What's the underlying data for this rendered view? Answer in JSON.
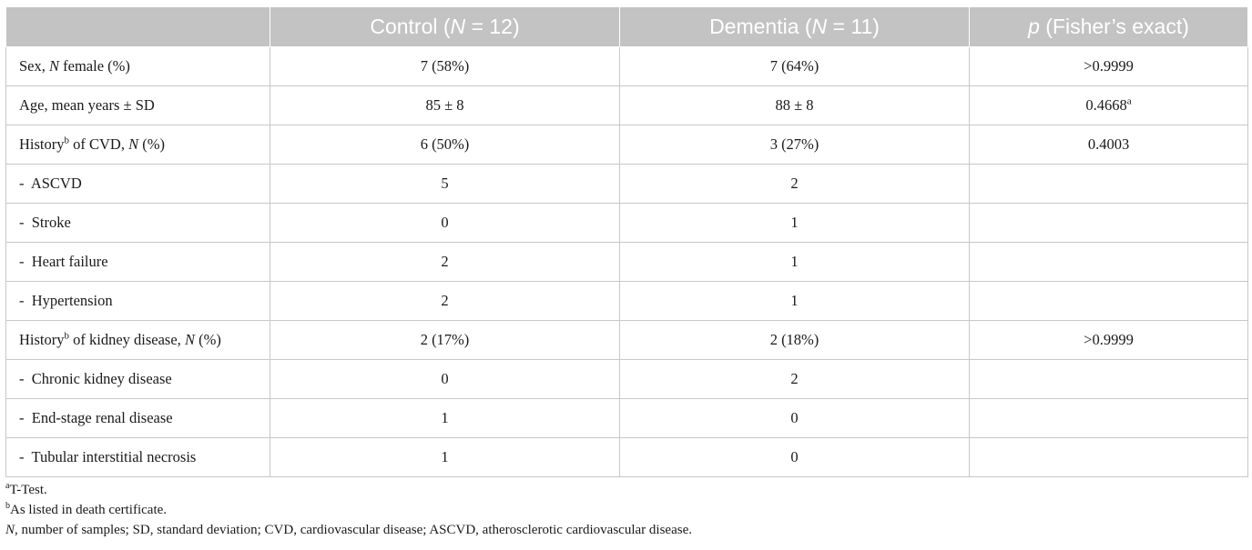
{
  "header": {
    "col1": "",
    "col2": {
      "pre": "Control (",
      "n": "N",
      "post": " = 12)"
    },
    "col3": {
      "pre": "Dementia (",
      "n": "N",
      "post": " = 11)"
    },
    "col4": {
      "p": "p",
      "post": " (Fisher’s exact)"
    }
  },
  "rows": [
    {
      "label_a": "Sex, ",
      "label_n": "N",
      "label_b": " female (%)",
      "control": "7 (58%)",
      "dementia": "7 (64%)",
      "p": ">0.9999"
    },
    {
      "label": "Age, mean years ± SD",
      "control": "85 ± 8",
      "dementia": "88 ± 8",
      "p": "0.4668",
      "p_sup": "a"
    },
    {
      "label_a": "History",
      "label_sup": "b",
      "label_b": " of CVD, ",
      "label_n": "N",
      "label_c": " (%)",
      "control": "6 (50%)",
      "dementia": "3 (27%)",
      "p": "0.4003"
    },
    {
      "label": "-  ASCVD",
      "control": "5",
      "dementia": "2",
      "p": ""
    },
    {
      "label": "-  Stroke",
      "control": "0",
      "dementia": "1",
      "p": ""
    },
    {
      "label": "-  Heart failure",
      "control": "2",
      "dementia": "1",
      "p": ""
    },
    {
      "label": "-  Hypertension",
      "control": "2",
      "dementia": "1",
      "p": ""
    },
    {
      "label_a": "History",
      "label_sup": "b",
      "label_b": " of kidney disease, ",
      "label_n": "N",
      "label_c": " (%)",
      "control": "2 (17%)",
      "dementia": "2 (18%)",
      "p": ">0.9999"
    },
    {
      "label": "-  Chronic kidney disease",
      "control": "0",
      "dementia": "2",
      "p": ""
    },
    {
      "label": "-  End-stage renal disease",
      "control": "1",
      "dementia": "0",
      "p": ""
    },
    {
      "label": "-  Tubular interstitial necrosis",
      "control": "1",
      "dementia": "0",
      "p": ""
    }
  ],
  "footnotes": {
    "a_mark": "a",
    "a_text": "T-Test.",
    "b_mark": "b",
    "b_text": "As listed in death certificate.",
    "abbr_n": "N",
    "abbr_text": ", number of samples; SD, standard deviation; CVD, cardiovascular disease; ASCVD, atherosclerotic cardiovascular disease."
  }
}
